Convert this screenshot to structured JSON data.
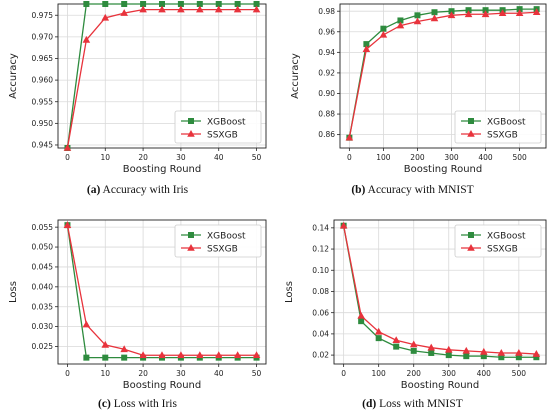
{
  "colors": {
    "xgboost": "#2e8b3e",
    "ssxgb": "#e8333c",
    "grid": "#d9d9d9",
    "axis": "#222222"
  },
  "captions": [
    {
      "tag": "(a)",
      "text": "Accuracy with Iris"
    },
    {
      "tag": "(b)",
      "text": "Accuracy with MNIST"
    },
    {
      "tag": "(c)",
      "text": "Loss with Iris"
    },
    {
      "tag": "(d)",
      "text": "Loss with MNIST"
    }
  ],
  "chart_data": [
    {
      "type": "line",
      "title": "",
      "xlabel": "Boosting Round",
      "ylabel": "Accuracy",
      "x": [
        0,
        5,
        10,
        15,
        20,
        25,
        30,
        35,
        40,
        45,
        50
      ],
      "xlim": [
        -2.5,
        52.5
      ],
      "ylim": [
        0.9443,
        0.9776
      ],
      "xticks": [
        0,
        10,
        20,
        30,
        40,
        50
      ],
      "yticks": [
        0.945,
        0.95,
        0.955,
        0.96,
        0.965,
        0.97,
        0.975
      ],
      "ytick_labels": [
        "0.945",
        "0.950",
        "0.955",
        "0.960",
        "0.965",
        "0.970",
        "0.975"
      ],
      "grid": true,
      "legend": "lower right",
      "series": [
        {
          "name": "XGBoost",
          "marker": "square",
          "values": [
            0.9443,
            0.9776,
            0.9776,
            0.9776,
            0.9776,
            0.9776,
            0.9776,
            0.9776,
            0.9776,
            0.9776,
            0.9776
          ]
        },
        {
          "name": "SSXGB",
          "marker": "triangle",
          "values": [
            0.9443,
            0.9693,
            0.9744,
            0.9755,
            0.9763,
            0.9763,
            0.9763,
            0.9763,
            0.9763,
            0.9763,
            0.9763
          ]
        }
      ]
    },
    {
      "type": "line",
      "title": "",
      "xlabel": "Boosting Round",
      "ylabel": "Accuracy",
      "x": [
        0,
        50,
        100,
        150,
        200,
        250,
        300,
        350,
        400,
        450,
        500,
        550
      ],
      "xlim": [
        -27.5,
        577.5
      ],
      "ylim": [
        0.847,
        0.987
      ],
      "xticks": [
        0,
        100,
        200,
        300,
        400,
        500
      ],
      "yticks": [
        0.86,
        0.88,
        0.9,
        0.92,
        0.94,
        0.96,
        0.98
      ],
      "ytick_labels": [
        "0.86",
        "0.88",
        "0.90",
        "0.92",
        "0.94",
        "0.96",
        "0.98"
      ],
      "grid": true,
      "legend": "lower right",
      "series": [
        {
          "name": "XGBoost",
          "marker": "square",
          "values": [
            0.857,
            0.948,
            0.963,
            0.971,
            0.976,
            0.979,
            0.98,
            0.981,
            0.981,
            0.981,
            0.982,
            0.982
          ]
        },
        {
          "name": "SSXGB",
          "marker": "triangle",
          "values": [
            0.857,
            0.943,
            0.957,
            0.966,
            0.97,
            0.973,
            0.976,
            0.977,
            0.977,
            0.978,
            0.978,
            0.979
          ]
        }
      ]
    },
    {
      "type": "line",
      "title": "",
      "xlabel": "Boosting Round",
      "ylabel": "Loss",
      "x": [
        0,
        5,
        10,
        15,
        20,
        25,
        30,
        35,
        40,
        45,
        50
      ],
      "xlim": [
        -2.5,
        52.5
      ],
      "ylim": [
        0.0206,
        0.0568
      ],
      "xticks": [
        0,
        10,
        20,
        30,
        40,
        50
      ],
      "yticks": [
        0.025,
        0.03,
        0.035,
        0.04,
        0.045,
        0.05,
        0.055
      ],
      "ytick_labels": [
        "0.025",
        "0.030",
        "0.035",
        "0.040",
        "0.045",
        "0.050",
        "0.055"
      ],
      "grid": true,
      "legend": "upper right",
      "series": [
        {
          "name": "XGBoost",
          "marker": "square",
          "values": [
            0.0555,
            0.0222,
            0.0222,
            0.0222,
            0.0222,
            0.0222,
            0.0222,
            0.0222,
            0.0222,
            0.0222,
            0.0222
          ]
        },
        {
          "name": "SSXGB",
          "marker": "triangle",
          "values": [
            0.0555,
            0.0305,
            0.0254,
            0.0243,
            0.0228,
            0.0228,
            0.0228,
            0.0228,
            0.0228,
            0.0228,
            0.0228
          ]
        }
      ]
    },
    {
      "type": "line",
      "title": "",
      "xlabel": "Boosting Round",
      "ylabel": "Loss",
      "x": [
        0,
        50,
        100,
        150,
        200,
        250,
        300,
        350,
        400,
        450,
        500,
        550
      ],
      "xlim": [
        -27.5,
        577.5
      ],
      "ylim": [
        0.0116,
        0.1474
      ],
      "xticks": [
        0,
        100,
        200,
        300,
        400,
        500
      ],
      "yticks": [
        0.02,
        0.04,
        0.06,
        0.08,
        0.1,
        0.12,
        0.14
      ],
      "ytick_labels": [
        "0.02",
        "0.04",
        "0.06",
        "0.08",
        "0.10",
        "0.12",
        "0.14"
      ],
      "grid": true,
      "legend": "upper right",
      "series": [
        {
          "name": "XGBoost",
          "marker": "square",
          "values": [
            0.142,
            0.052,
            0.036,
            0.028,
            0.024,
            0.022,
            0.02,
            0.019,
            0.019,
            0.018,
            0.018,
            0.018
          ]
        },
        {
          "name": "SSXGB",
          "marker": "triangle",
          "values": [
            0.142,
            0.057,
            0.042,
            0.034,
            0.03,
            0.027,
            0.025,
            0.024,
            0.023,
            0.022,
            0.022,
            0.021
          ]
        }
      ]
    }
  ]
}
